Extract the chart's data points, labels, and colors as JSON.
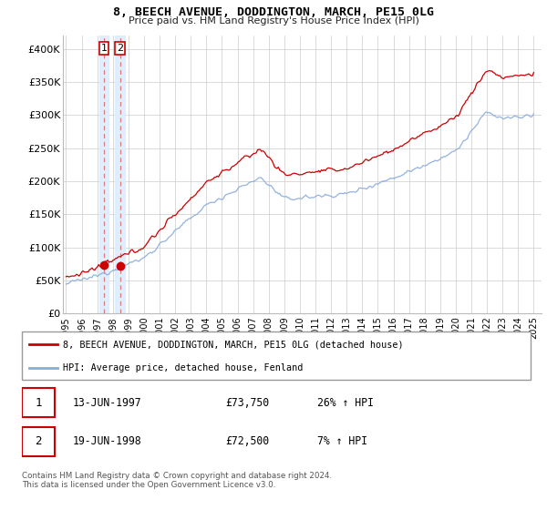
{
  "title": "8, BEECH AVENUE, DODDINGTON, MARCH, PE15 0LG",
  "subtitle": "Price paid vs. HM Land Registry's House Price Index (HPI)",
  "legend_red": "8, BEECH AVENUE, DODDINGTON, MARCH, PE15 0LG (detached house)",
  "legend_blue": "HPI: Average price, detached house, Fenland",
  "sale1_date": "13-JUN-1997",
  "sale1_price": "£73,750",
  "sale1_hpi": "26% ↑ HPI",
  "sale2_date": "19-JUN-1998",
  "sale2_price": "£72,500",
  "sale2_hpi": "7% ↑ HPI",
  "footer": "Contains HM Land Registry data © Crown copyright and database right 2024.\nThis data is licensed under the Open Government Licence v3.0.",
  "red_color": "#cc0000",
  "blue_color": "#88aadd",
  "highlight_color": "#ddeeff",
  "sale1_year": 1997.44,
  "sale2_year": 1998.46,
  "sale1_price_val": 73750,
  "sale2_price_val": 72500,
  "ylim": [
    0,
    420000
  ],
  "xlim": [
    1994.8,
    2025.5
  ],
  "yticks": [
    0,
    50000,
    100000,
    150000,
    200000,
    250000,
    300000,
    350000,
    400000
  ],
  "ylabels": [
    "£0",
    "£50K",
    "£100K",
    "£150K",
    "£200K",
    "£250K",
    "£300K",
    "£350K",
    "£400K"
  ]
}
